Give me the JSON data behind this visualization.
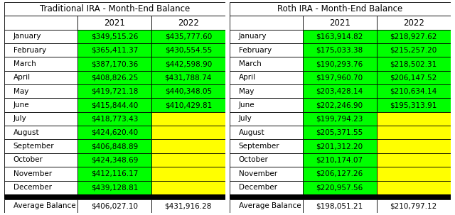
{
  "trad_title": "Traditional IRA - Month-End Balance",
  "roth_title": "Roth IRA - Month-End Balance",
  "months": [
    "January",
    "February",
    "March",
    "April",
    "May",
    "June",
    "July",
    "August",
    "September",
    "October",
    "November",
    "December"
  ],
  "trad_2021": [
    "$349,515.26",
    "$365,411.37",
    "$387,170.36",
    "$408,826.25",
    "$419,721.18",
    "$415,844.40",
    "$418,773.43",
    "$424,620.40",
    "$406,848.89",
    "$424,348.69",
    "$412,116.17",
    "$439,128.81"
  ],
  "trad_2022": [
    "$435,777.60",
    "$430,554.55",
    "$442,598.90",
    "$431,788.74",
    "$440,348.05",
    "$410,429.81",
    "",
    "",
    "",
    "",
    "",
    ""
  ],
  "roth_2021": [
    "$163,914.82",
    "$175,033.38",
    "$190,293.76",
    "$197,960.70",
    "$203,428.14",
    "$202,246.90",
    "$199,794.23",
    "$205,371.55",
    "$201,312.20",
    "$210,174.07",
    "$206,127.26",
    "$220,957.56"
  ],
  "roth_2022": [
    "$218,927.62",
    "$215,257.20",
    "$218,502.31",
    "$206,147.52",
    "$210,634.14",
    "$195,313.91",
    "",
    "",
    "",
    "",
    "",
    ""
  ],
  "trad_avg_2021": "$406,027.10",
  "trad_avg_2022": "$431,916.28",
  "roth_avg_2021": "$198,051.21",
  "roth_avg_2022": "$210,797.12",
  "col_header_2021": "2021",
  "col_header_2022": "2022",
  "green_color": "#00FF00",
  "yellow_color": "#FFFF00",
  "white_color": "#FFFFFF",
  "black_color": "#000000",
  "title_fontsize": 8.5,
  "header_fontsize": 8.5,
  "cell_fontsize": 7.5,
  "month_fontsize": 7.5
}
